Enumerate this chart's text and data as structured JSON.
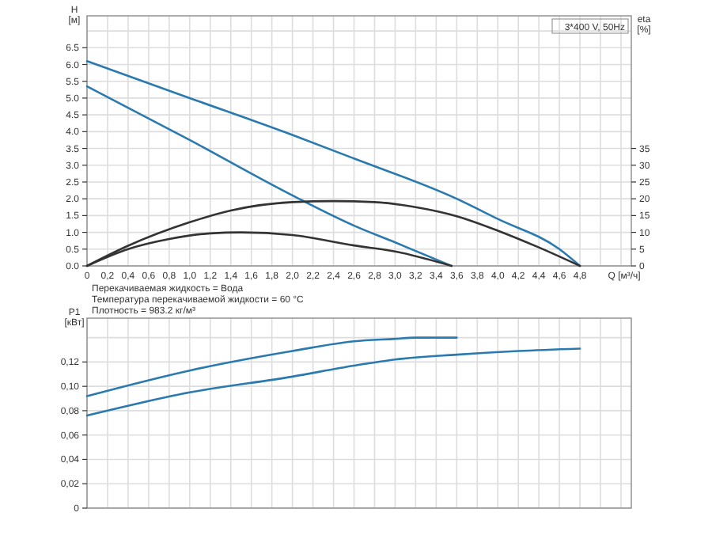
{
  "chart_data": [
    {
      "type": "line",
      "title": "3*400 V, 50Hz",
      "xlabel": "Q [м³/ч]",
      "ylabel": "H [м]",
      "y2label": "eta [%]",
      "annotations": [
        "Перекачиваемая жидкость = Вода",
        "Температура перекачиваемой жидкости = 60 °C",
        "Плотность = 983.2 кг/м³"
      ],
      "xlim": [
        0,
        5.3
      ],
      "xticks": [
        0,
        {
          "value": 0.2,
          "label": "0,2"
        },
        {
          "value": 0.4,
          "label": "0,4"
        },
        {
          "value": 0.6,
          "label": "0,6"
        },
        {
          "value": 0.8,
          "label": "0,8"
        },
        {
          "value": 1,
          "label": "1,0"
        },
        {
          "value": 1.2,
          "label": "1,2"
        },
        {
          "value": 1.4,
          "label": "1,4"
        },
        {
          "value": 1.6,
          "label": "1,6"
        },
        {
          "value": 1.8,
          "label": "1,8"
        },
        {
          "value": 2,
          "label": "2,0"
        },
        {
          "value": 2.2,
          "label": "2,2"
        },
        {
          "value": 2.4,
          "label": "2,4"
        },
        {
          "value": 2.6,
          "label": "2,6"
        },
        {
          "value": 2.8,
          "label": "2,8"
        },
        {
          "value": 3,
          "label": "3,0"
        },
        {
          "value": 3.2,
          "label": "3,2"
        },
        {
          "value": 3.4,
          "label": "3,4"
        },
        {
          "value": 3.6,
          "label": "3,6"
        },
        {
          "value": 3.8,
          "label": "3,8"
        },
        {
          "value": 4,
          "label": "4,0"
        },
        {
          "value": 4.2,
          "label": "4,2"
        },
        {
          "value": 4.4,
          "label": "4,4"
        },
        {
          "value": 4.6,
          "label": "4,6"
        },
        {
          "value": 4.8,
          "label": "4,8"
        },
        {
          "value": 5,
          "label": null
        },
        {
          "value": 5.2,
          "label": null
        }
      ],
      "ylim": [
        0,
        7.45
      ],
      "yticks": [
        {
          "value": 0,
          "label": "0.0"
        },
        0.5,
        {
          "value": 1,
          "label": "1.0"
        },
        1.5,
        {
          "value": 2,
          "label": "2.0"
        },
        2.5,
        {
          "value": 3,
          "label": "3.0"
        },
        3.5,
        {
          "value": 4,
          "label": "4.0"
        },
        4.5,
        {
          "value": 5,
          "label": "5.0"
        },
        5.5,
        {
          "value": 6,
          "label": "6.0"
        },
        6.5,
        {
          "value": 7,
          "label": null
        }
      ],
      "y2lim": [
        0,
        74.5
      ],
      "y2ticks": [
        0,
        5,
        10,
        15,
        20,
        25,
        30,
        35
      ],
      "grid": true,
      "series": [
        {
          "color": "#2a7ab0",
          "x": [
            0,
            1,
            2,
            2.6,
            3.6,
            4,
            4.6,
            4.8
          ],
          "values": [
            6.1,
            5.0,
            3.9,
            3.2,
            2.0,
            1.4,
            0.5,
            0
          ]
        },
        {
          "color": "#2a7ab0",
          "x": [
            0,
            1,
            2,
            2.6,
            3,
            3.55
          ],
          "values": [
            5.35,
            3.75,
            2.1,
            1.2,
            0.7,
            0
          ]
        },
        {
          "color": "#333333",
          "axis": "y2",
          "x": [
            0,
            0.4,
            1,
            1.4,
            2,
            2.4,
            2.8,
            3.2,
            3.6,
            4,
            4.4,
            4.8
          ],
          "values": [
            0,
            6,
            13,
            16.5,
            19,
            19.3,
            19,
            17.5,
            14.8,
            10.5,
            5.5,
            0
          ]
        },
        {
          "color": "#333333",
          "axis": "y2",
          "x": [
            0,
            0.4,
            0.8,
            1.2,
            1.5,
            2,
            2.6,
            3,
            3.55
          ],
          "values": [
            0,
            5,
            8,
            9.7,
            10,
            9.2,
            6.1,
            4.3,
            0
          ]
        }
      ]
    },
    {
      "type": "line",
      "ylabel": "P1 [кВт]",
      "xlim": [
        0,
        5.3
      ],
      "xticks": [
        0,
        0.2,
        0.4,
        0.6,
        0.8,
        1,
        1.2,
        1.4,
        1.6,
        1.8,
        2,
        2.2,
        2.4,
        2.6,
        2.8,
        3,
        3.2,
        3.4,
        3.6,
        3.8,
        4,
        4.2,
        4.4,
        4.6,
        4.8,
        5,
        5.2
      ],
      "tick_labels": "y",
      "ylim": [
        0,
        0.156
      ],
      "yticks": [
        0,
        {
          "value": 0.02,
          "label": "0,02"
        },
        {
          "value": 0.04,
          "label": "0,04"
        },
        {
          "value": 0.06,
          "label": "0,06"
        },
        {
          "value": 0.08,
          "label": "0,08"
        },
        {
          "value": 0.1,
          "label": "0,10"
        },
        {
          "value": 0.12,
          "label": "0,12"
        },
        {
          "value": 0.14,
          "label": null
        }
      ],
      "grid": true,
      "series": [
        {
          "color": "#2a7ab0",
          "x": [
            0,
            1,
            2,
            2.6,
            3,
            3.2,
            3.6
          ],
          "values": [
            0.092,
            0.113,
            0.129,
            0.137,
            0.139,
            0.14,
            0.14
          ]
        },
        {
          "color": "#2a7ab0",
          "x": [
            0,
            1,
            2,
            2.6,
            3,
            3.6,
            4.2,
            4.8
          ],
          "values": [
            0.076,
            0.095,
            0.108,
            0.117,
            0.122,
            0.126,
            0.129,
            0.131
          ]
        }
      ]
    }
  ]
}
